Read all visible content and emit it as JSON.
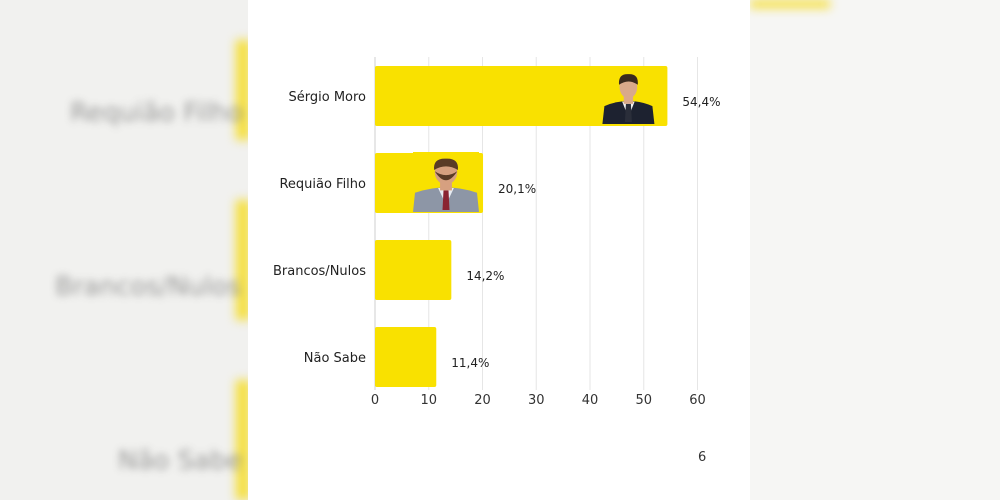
{
  "chart_data": {
    "type": "bar",
    "orientation": "horizontal",
    "categories": [
      "Sérgio Moro",
      "Requião Filho",
      "Brancos/Nulos",
      "Não Sabe"
    ],
    "values": [
      54.4,
      20.1,
      14.2,
      11.4
    ],
    "value_labels": [
      "54,4%",
      "20,1%",
      "14,2%",
      "11,4%"
    ],
    "xticks": [
      "0",
      "10",
      "20",
      "30",
      "40",
      "50",
      "60"
    ],
    "xlim": [
      0,
      60
    ],
    "grid": true,
    "bar_color": "#f9e100",
    "title": "",
    "xlabel": "",
    "ylabel": ""
  },
  "page_number": "6",
  "background_blurred_labels": [
    "Requião Filho",
    "Brancos/Nulos",
    "Não Sabe"
  ]
}
